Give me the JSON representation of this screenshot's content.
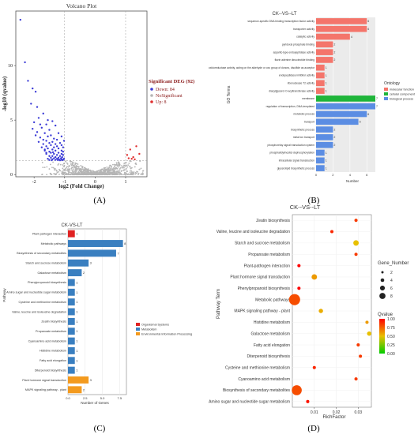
{
  "panel_labels": [
    "(A)",
    "(B)",
    "(C)",
    "(D)"
  ],
  "chart_data": [
    {
      "panel": "(A)",
      "type": "scatter",
      "title": "Volcano Plot",
      "xlabel": "log2 (Fold Change)",
      "ylabel": "-log10 (qvalue)",
      "xticks": [
        "-2",
        "-1",
        "0",
        "1"
      ],
      "yticks": [
        "0",
        "5",
        "10"
      ],
      "xlim": [
        -2.6,
        1.7
      ],
      "ylim": [
        -0.2,
        15
      ],
      "thresholds": {
        "x": [
          -1,
          1
        ],
        "y": 1.3
      },
      "legend_title": "Significant DEG (92)",
      "legend": [
        "Down: 84",
        "NoSignificant",
        "Up: 8"
      ],
      "legend_position": "right",
      "colors": {
        "down": "#3b3bd6",
        "none": "#b5b5b5",
        "up": "#e03030"
      },
      "series": [
        {
          "name": "Down: 84",
          "points": [
            [
              -2.45,
              14.2
            ],
            [
              -2.3,
              10.3
            ],
            [
              -2.2,
              8.6
            ],
            [
              -2.05,
              7.9
            ],
            [
              -1.95,
              7.6
            ],
            [
              -2.1,
              6.5
            ],
            [
              -1.9,
              6.2
            ],
            [
              -1.7,
              5.6
            ],
            [
              -1.85,
              5.2
            ],
            [
              -2.0,
              4.8
            ],
            [
              -1.6,
              4.6
            ],
            [
              -1.75,
              4.3
            ],
            [
              -1.5,
              4.1
            ],
            [
              -1.9,
              3.9
            ],
            [
              -1.65,
              3.8
            ],
            [
              -1.45,
              3.6
            ],
            [
              -1.55,
              3.5
            ],
            [
              -1.8,
              3.4
            ],
            [
              -1.35,
              3.3
            ],
            [
              -1.7,
              3.2
            ],
            [
              -1.25,
              3.2
            ],
            [
              -1.6,
              3.1
            ],
            [
              -1.4,
              3.0
            ],
            [
              -1.5,
              2.9
            ],
            [
              -1.15,
              2.9
            ],
            [
              -1.3,
              2.8
            ],
            [
              -1.7,
              2.8
            ],
            [
              -1.45,
              2.7
            ],
            [
              -1.1,
              2.7
            ],
            [
              -1.6,
              2.6
            ],
            [
              -1.25,
              2.6
            ],
            [
              -1.35,
              2.5
            ],
            [
              -1.05,
              2.5
            ],
            [
              -1.55,
              2.4
            ],
            [
              -1.2,
              2.4
            ],
            [
              -1.4,
              2.3
            ],
            [
              -1.65,
              2.3
            ],
            [
              -1.1,
              2.2
            ],
            [
              -1.3,
              2.2
            ],
            [
              -1.5,
              2.1
            ],
            [
              -1.05,
              2.1
            ],
            [
              -1.2,
              2.0
            ],
            [
              -1.45,
              2.0
            ],
            [
              -1.35,
              1.9
            ],
            [
              -1.1,
              1.9
            ],
            [
              -1.6,
              1.9
            ],
            [
              -1.25,
              1.8
            ],
            [
              -1.05,
              1.8
            ],
            [
              -1.4,
              1.7
            ],
            [
              -1.15,
              1.7
            ],
            [
              -1.5,
              1.7
            ],
            [
              -1.3,
              1.6
            ],
            [
              -1.08,
              1.6
            ],
            [
              -1.2,
              1.55
            ],
            [
              -1.45,
              1.55
            ],
            [
              -1.12,
              1.5
            ],
            [
              -1.35,
              1.5
            ],
            [
              -1.02,
              1.45
            ],
            [
              -1.25,
              1.45
            ],
            [
              -1.55,
              1.45
            ],
            [
              -1.1,
              1.4
            ],
            [
              -1.4,
              1.4
            ],
            [
              -1.18,
              1.38
            ],
            [
              -1.05,
              1.36
            ],
            [
              -1.3,
              1.35
            ],
            [
              -1.5,
              1.34
            ],
            [
              -1.22,
              1.33
            ],
            [
              -1.08,
              1.32
            ],
            [
              -1.42,
              1.32
            ],
            [
              -1.15,
              1.31
            ],
            [
              -1.6,
              2.0
            ],
            [
              -1.75,
              2.5
            ],
            [
              -1.85,
              3.0
            ],
            [
              -1.95,
              3.6
            ],
            [
              -2.05,
              4.2
            ],
            [
              -1.8,
              4.6
            ],
            [
              -1.55,
              5.0
            ],
            [
              -1.4,
              4.9
            ],
            [
              -1.3,
              4.5
            ],
            [
              -1.2,
              3.8
            ],
            [
              -1.1,
              3.5
            ],
            [
              -1.02,
              3.1
            ],
            [
              -1.65,
              2.2
            ],
            [
              -1.38,
              2.05
            ]
          ]
        },
        {
          "name": "Up: 8",
          "points": [
            [
              1.05,
              1.8
            ],
            [
              1.15,
              2.3
            ],
            [
              1.25,
              1.6
            ],
            [
              1.35,
              2.6
            ],
            [
              1.2,
              1.45
            ],
            [
              1.45,
              1.9
            ],
            [
              1.1,
              1.5
            ],
            [
              1.3,
              1.4
            ]
          ]
        }
      ]
    },
    {
      "panel": "(B)",
      "type": "bar",
      "orientation": "horizontal",
      "title": "CK--VS--LT",
      "xlabel": "Number",
      "ylabel": "GO Terms",
      "xticks": [
        "0",
        "2",
        "4",
        "6"
      ],
      "xlim": [
        0,
        7
      ],
      "legend_title": "Ontology",
      "legend": [
        "molecular function",
        "cellular component",
        "biological process"
      ],
      "legend_position": "right",
      "colors": {
        "molecular function": "#f4756b",
        "cellular component": "#1fb53a",
        "biological process": "#5b8de3"
      },
      "categories": [
        "sequence-specific DNA binding transcription factor activity",
        "transporter activity",
        "catalytic activity",
        "pyridoxal phosphate binding",
        "aspartic-type endopeptidase activity",
        "flavin adenine dinucleotide binding",
        "oxidoreductase activity, acting on the aldehyde or oxo group of donors, disulfide as acceptor",
        "endopeptidase inhibitor activity",
        "ribonuclease T2 activity",
        "diacylglycerol O-acyltransferase activity",
        "membrane",
        "regulation of transcription, DNA-templated",
        "metabolic process",
        "transport",
        "biosynthetic process",
        "metal ion transport",
        "phosphorelay signal transduction system",
        "phosphatidylinositol dephosphorylation",
        "intracellular signal transduction",
        "glycerolipid biosynthetic process"
      ],
      "ontology": [
        "molecular function",
        "molecular function",
        "molecular function",
        "molecular function",
        "molecular function",
        "molecular function",
        "molecular function",
        "molecular function",
        "molecular function",
        "molecular function",
        "cellular component",
        "biological process",
        "biological process",
        "biological process",
        "biological process",
        "biological process",
        "biological process",
        "biological process",
        "biological process",
        "biological process"
      ],
      "values": [
        6,
        6,
        4,
        2,
        2,
        2,
        1,
        1,
        1,
        1,
        7,
        7,
        6,
        5,
        2,
        2,
        2,
        1,
        1,
        1
      ]
    },
    {
      "panel": "(C)",
      "type": "bar",
      "orientation": "horizontal",
      "title": "CK-VS-LT",
      "xlabel": "Number of Genes",
      "ylabel": "Pathway",
      "xticks": [
        "0.0",
        "2.5",
        "5.0",
        "7.5"
      ],
      "xlim": [
        0,
        8.5
      ],
      "legend": [
        "Organismal Systems",
        "Metabolism",
        "Environmental Information Processing"
      ],
      "legend_position": "right",
      "colors": {
        "Organismal Systems": "#e02222",
        "Metabolism": "#3a7fc0",
        "Environmental Information Processing": "#f39a1e"
      },
      "categories": [
        "Plant-pathogen interaction",
        "Metabolic pathways",
        "Biosynthesis of secondary metabolites",
        "Starch and sucrose metabolism",
        "Galactose metabolism",
        "Phenylpropanoid biosynthesis",
        "Amino sugar and nucleotide sugar metabolism",
        "Cysteine and methionine metabolism",
        "Valine, leucine and isoleucine degradation",
        "Zeatin biosynthesis",
        "Propanoate metabolism",
        "Cyanoamino acid metabolism",
        "Histidine metabolism",
        "Fatty acid elongation",
        "Diterpenoid biosynthesis",
        "Plant hormone signal transduction",
        "MAPK signaling pathway - plant"
      ],
      "group": [
        "Organismal Systems",
        "Metabolism",
        "Metabolism",
        "Metabolism",
        "Metabolism",
        "Metabolism",
        "Metabolism",
        "Metabolism",
        "Metabolism",
        "Metabolism",
        "Metabolism",
        "Metabolism",
        "Metabolism",
        "Metabolism",
        "Metabolism",
        "Environmental Information Processing",
        "Environmental Information Processing"
      ],
      "values": [
        1,
        8,
        7,
        3,
        2,
        1,
        1,
        1,
        1,
        1,
        1,
        1,
        1,
        1,
        1,
        3,
        2
      ]
    },
    {
      "panel": "(D)",
      "type": "scatter",
      "title": "CK--VS--LT",
      "xlabel": "RichFactor",
      "ylabel": "Pathway Term",
      "xticks": [
        "0.01",
        "0.02",
        "0.03"
      ],
      "xlim": [
        0.0,
        0.036
      ],
      "size_legend_title": "Gene_Number",
      "size_legend": [
        "2",
        "4",
        "6",
        "8"
      ],
      "color_legend_title": "Qvalue",
      "color_legend": [
        "1.00",
        "0.75",
        "0.50",
        "0.25",
        "0.00"
      ],
      "legend_position": "right",
      "categories": [
        "Zeatin biosynthesis",
        "Valine, leucine and isoleucine degradation",
        "Starch and sucrose metabolism",
        "Propanoate metabolism",
        "Plant-pathogen interaction",
        "Plant hormone signal transduction",
        "Phenylpropanoid biosynthesis",
        "Metabolic pathways",
        "MAPK signaling pathway - plant",
        "Histidine metabolism",
        "Galactose metabolism",
        "Fatty acid elongation",
        "Diterpenoid biosynthesis",
        "Cysteine and methionine metabolism",
        "Cyanoamino acid metabolism",
        "Biosynthesis of secondary metabolites",
        "Amino sugar and nucleotide sugar metabolism"
      ],
      "rich_factor": [
        0.029,
        0.018,
        0.029,
        0.029,
        0.003,
        0.01,
        0.003,
        0.001,
        0.013,
        0.034,
        0.035,
        0.03,
        0.031,
        0.01,
        0.029,
        0.002,
        0.007
      ],
      "gene_number": [
        1,
        1,
        3,
        1,
        1,
        3,
        1,
        8,
        2,
        1,
        2,
        1,
        1,
        1,
        1,
        7,
        1
      ],
      "qvalue": [
        0.85,
        0.9,
        0.5,
        0.85,
        1.0,
        0.6,
        1.0,
        0.8,
        0.55,
        0.6,
        0.5,
        0.85,
        0.85,
        0.9,
        0.85,
        0.8,
        0.95
      ]
    }
  ]
}
